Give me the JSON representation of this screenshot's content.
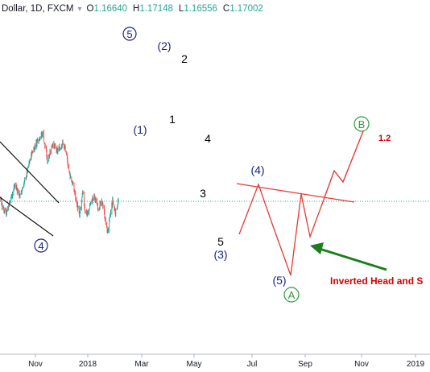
{
  "header": {
    "symbol": "Dollar, 1D, FXCM",
    "caret": "▾",
    "ohlc": [
      {
        "k": "O",
        "v": "1.16640"
      },
      {
        "k": "H",
        "v": "1.17148"
      },
      {
        "k": "L",
        "v": "1.16556"
      },
      {
        "k": "C",
        "v": "1.17002"
      }
    ]
  },
  "colors": {
    "candle_up": "#26a69a",
    "candle_down": "#ef5350",
    "wave_blue": "#1a237e",
    "wave_black": "#000000",
    "trend_red": "#e53935",
    "wave_green": "#2e9b3a",
    "arrow_green": "#1b7f1b",
    "last_price_line": "#26a69a",
    "text_red": "#d50000"
  },
  "chart_data": {
    "type": "candlestick",
    "title": "",
    "x_tick_labels": [
      "Nov",
      "2018",
      "Mar",
      "May",
      "Jul",
      "Sep",
      "Nov",
      "2019"
    ],
    "last_price": 1.17002,
    "y_range": [
      1.12,
      1.26
    ],
    "candles_description": "daily OHLC EUR/USD-style series; approximated path",
    "path": [
      {
        "d": "2017-10-01",
        "p": 1.175
      },
      {
        "d": "2017-10-10",
        "p": 1.182
      },
      {
        "d": "2017-10-20",
        "p": 1.176
      },
      {
        "d": "2017-10-27",
        "p": 1.162
      },
      {
        "d": "2017-11-07",
        "p": 1.157
      },
      {
        "d": "2017-11-20",
        "p": 1.175
      },
      {
        "d": "2017-12-01",
        "p": 1.19
      },
      {
        "d": "2017-12-15",
        "p": 1.176
      },
      {
        "d": "2018-01-01",
        "p": 1.201
      },
      {
        "d": "2018-01-15",
        "p": 1.226
      },
      {
        "d": "2018-02-01",
        "p": 1.244
      },
      {
        "d": "2018-02-16",
        "p": 1.252
      },
      {
        "d": "2018-03-01",
        "p": 1.219
      },
      {
        "d": "2018-03-15",
        "p": 1.24
      },
      {
        "d": "2018-03-28",
        "p": 1.23
      },
      {
        "d": "2018-04-12",
        "p": 1.24
      },
      {
        "d": "2018-04-20",
        "p": 1.232
      },
      {
        "d": "2018-05-01",
        "p": 1.205
      },
      {
        "d": "2018-05-15",
        "p": 1.182
      },
      {
        "d": "2018-05-29",
        "p": 1.152
      },
      {
        "d": "2018-06-07",
        "p": 1.18
      },
      {
        "d": "2018-06-14",
        "p": 1.158
      },
      {
        "d": "2018-06-21",
        "p": 1.154
      },
      {
        "d": "2018-06-29",
        "p": 1.168
      },
      {
        "d": "2018-07-09",
        "p": 1.176
      },
      {
        "d": "2018-07-20",
        "p": 1.163
      },
      {
        "d": "2018-08-01",
        "p": 1.168
      },
      {
        "d": "2018-08-15",
        "p": 1.132
      },
      {
        "d": "2018-08-29",
        "p": 1.17
      },
      {
        "d": "2018-09-06",
        "p": 1.156
      },
      {
        "d": "2018-09-14",
        "p": 1.17
      }
    ],
    "wave_labels": [
      {
        "text": "5",
        "circled": true,
        "color": "blue"
      },
      {
        "text": "(2)",
        "circled": false,
        "color": "blue"
      },
      {
        "text": "2",
        "circled": false,
        "color": "black"
      },
      {
        "text": "(1)",
        "circled": false,
        "color": "blue"
      },
      {
        "text": "1",
        "circled": false,
        "color": "black"
      },
      {
        "text": "4",
        "circled": false,
        "color": "black"
      },
      {
        "text": "3",
        "circled": false,
        "color": "black"
      },
      {
        "text": "5",
        "circled": false,
        "color": "black"
      },
      {
        "text": "(3)",
        "circled": false,
        "color": "blue"
      },
      {
        "text": "(4)",
        "circled": false,
        "color": "blue"
      },
      {
        "text": "(5)",
        "circled": false,
        "color": "blue"
      },
      {
        "text": "A",
        "circled": true,
        "color": "green"
      },
      {
        "text": "B",
        "circled": true,
        "color": "green"
      },
      {
        "text": "4",
        "circled": true,
        "color": "blue"
      }
    ],
    "annotations": {
      "fib_label": "1.2",
      "pattern_label": "Inverted Head and S"
    }
  }
}
